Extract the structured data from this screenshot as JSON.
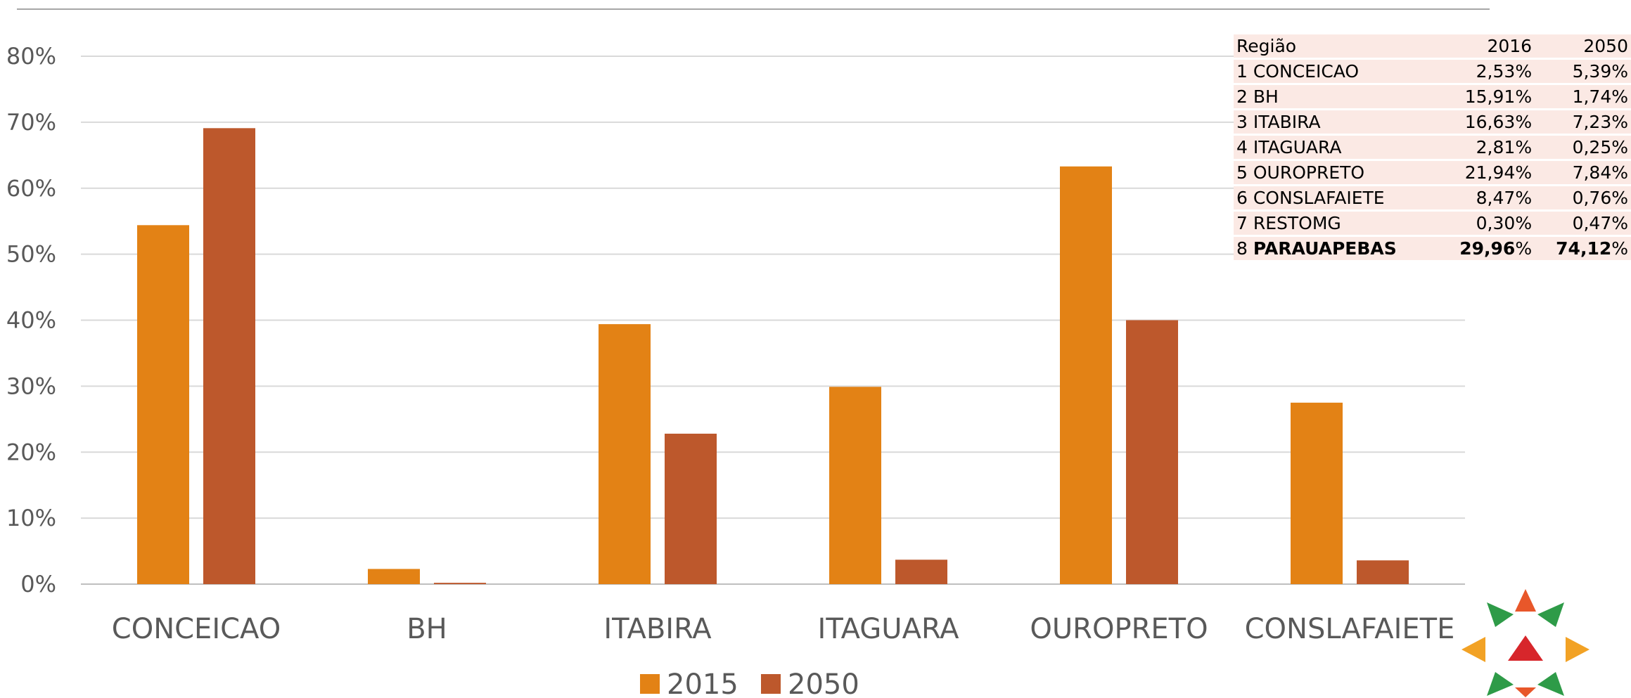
{
  "chart_data": {
    "type": "bar",
    "categories": [
      "CONCEICAO",
      "BH",
      "ITABIRA",
      "ITAGUARA",
      "OUROPRETO",
      "CONSLAFAIETE"
    ],
    "series": [
      {
        "name": "2015",
        "values": [
          54.4,
          2.3,
          39.4,
          29.9,
          63.3,
          27.5
        ],
        "color": "#e38215"
      },
      {
        "name": "2050",
        "values": [
          69.1,
          0.2,
          22.8,
          3.7,
          40.0,
          3.6
        ],
        "color": "#bd582c"
      }
    ],
    "ylim": [
      0,
      80
    ],
    "yticks": [
      "0%",
      "10%",
      "20%",
      "30%",
      "40%",
      "50%",
      "60%",
      "70%",
      "80%"
    ],
    "grid": true,
    "legend": "bottom-center",
    "title": "",
    "xlabel": "",
    "ylabel": ""
  },
  "table": {
    "headers": [
      "Região",
      "2016",
      "2050"
    ],
    "rows": [
      {
        "num": "1",
        "region": "CONCEICAO",
        "v2016": "2,53%",
        "v2050": "5,39%"
      },
      {
        "num": "2",
        "region": "BH",
        "v2016": "15,91%",
        "v2050": "1,74%"
      },
      {
        "num": "3",
        "region": "ITABIRA",
        "v2016": "16,63%",
        "v2050": "7,23%"
      },
      {
        "num": "4",
        "region": "ITAGUARA",
        "v2016": "2,81%",
        "v2050": "0,25%"
      },
      {
        "num": "5",
        "region": "OUROPRETO",
        "v2016": "21,94%",
        "v2050": "7,84%"
      },
      {
        "num": "6",
        "region": "CONSLAFAIETE",
        "v2016": "8,47%",
        "v2050": "0,76%"
      },
      {
        "num": "7",
        "region": "RESTOMG",
        "v2016": "0,30%",
        "v2050": "0,47%"
      }
    ],
    "bold_row": {
      "num": "8",
      "region": "PARAUAPEBAS",
      "v2016": "29,96",
      "v2050": "74,12",
      "pct": "%"
    }
  },
  "colors": {
    "grid": "#d9d9d9",
    "axis_text": "#595959",
    "table_bg": "#fbe9e4"
  },
  "logo_icon": "star-logo-icon"
}
